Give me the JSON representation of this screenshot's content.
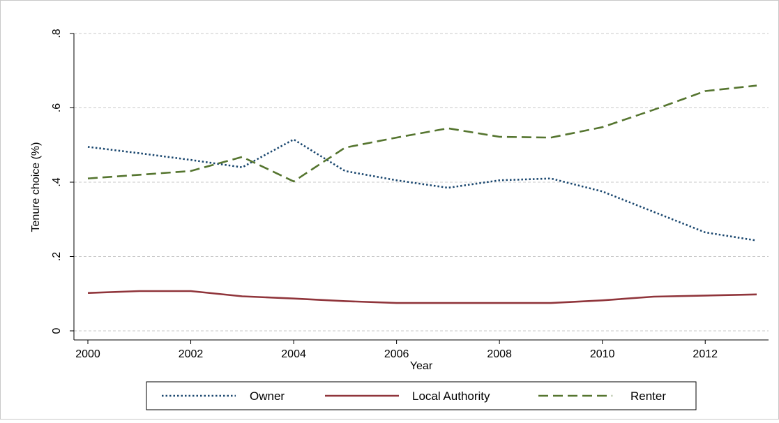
{
  "chart_data": {
    "type": "line",
    "title": "",
    "xlabel": "Year",
    "ylabel": "Tenure choice (%)",
    "xlim": [
      2000,
      2013
    ],
    "ylim": [
      0,
      0.8
    ],
    "xticks": [
      2000,
      2002,
      2004,
      2006,
      2008,
      2010,
      2012
    ],
    "xtick_labels": [
      "2000",
      "2002",
      "2004",
      "2006",
      "2008",
      "2010",
      "2012"
    ],
    "yticks": [
      0,
      0.2,
      0.4,
      0.6,
      0.8
    ],
    "ytick_labels": [
      "0",
      ".2",
      ".4",
      ".6",
      ".8"
    ],
    "grid": true,
    "legend_position": "bottom",
    "x": [
      2000,
      2001,
      2002,
      2003,
      2004,
      2005,
      2006,
      2007,
      2008,
      2009,
      2010,
      2011,
      2012,
      2013
    ],
    "series": [
      {
        "name": "Owner",
        "color": "#1a476f",
        "dash": "dotted",
        "values": [
          0.495,
          0.478,
          0.46,
          0.44,
          0.515,
          0.43,
          0.405,
          0.385,
          0.405,
          0.41,
          0.375,
          0.32,
          0.265,
          0.243
        ]
      },
      {
        "name": "Local Authority",
        "color": "#90353b",
        "dash": "solid",
        "values": [
          0.102,
          0.107,
          0.107,
          0.093,
          0.087,
          0.08,
          0.075,
          0.075,
          0.075,
          0.075,
          0.082,
          0.092,
          0.095,
          0.098
        ]
      },
      {
        "name": "Renter",
        "color": "#55752f",
        "dash": "dashed",
        "values": [
          0.41,
          0.42,
          0.43,
          0.468,
          0.402,
          0.493,
          0.52,
          0.545,
          0.522,
          0.52,
          0.548,
          0.595,
          0.645,
          0.66
        ]
      }
    ]
  }
}
